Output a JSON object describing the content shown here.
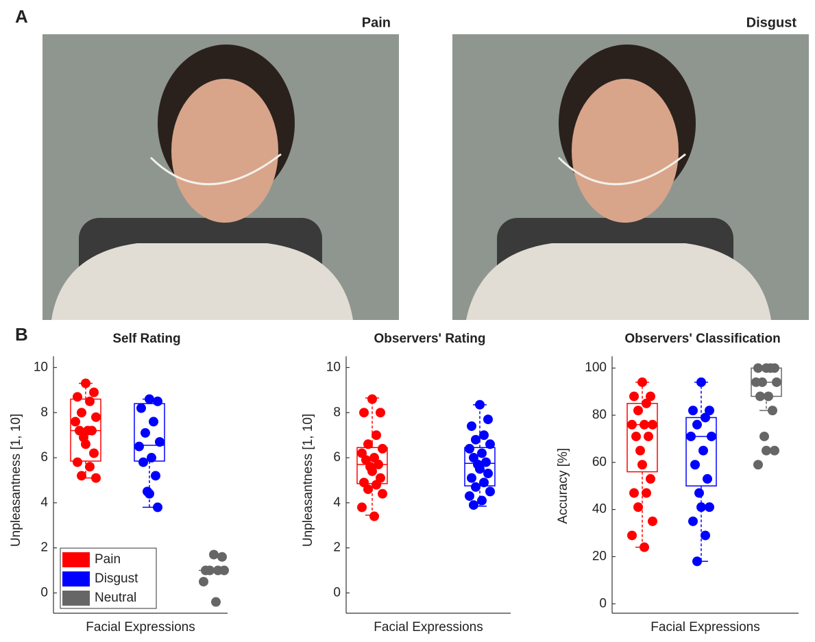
{
  "panel_labels": [
    "A",
    "B"
  ],
  "photos": [
    {
      "title": "Pain"
    },
    {
      "title": "Disgust"
    }
  ],
  "chart_data": [
    {
      "type": "box",
      "title": "Self Rating",
      "xlabel": "Facial Expressions",
      "ylabel": "Unpleasantness [1, 10]",
      "ylim": [
        -0.9,
        10.5
      ],
      "yticks": [
        0,
        2,
        4,
        6,
        8,
        10
      ],
      "legend": "lower left",
      "series": [
        {
          "name": "Pain",
          "color": "#ff0000",
          "box": {
            "min": 5.1,
            "q1": 5.85,
            "median": 7.2,
            "q3": 8.6,
            "max": 9.3
          },
          "points": [
            9.3,
            8.9,
            8.7,
            8.5,
            8.0,
            7.8,
            7.6,
            7.2,
            7.2,
            7.2,
            6.9,
            6.6,
            6.2,
            5.8,
            5.6,
            5.2,
            5.1
          ]
        },
        {
          "name": "Disgust",
          "color": "#0000ff",
          "box": {
            "min": 3.8,
            "q1": 5.85,
            "median": 6.55,
            "q3": 8.4,
            "max": 8.6
          },
          "points": [
            8.6,
            8.5,
            8.2,
            7.6,
            7.1,
            6.7,
            6.5,
            6.0,
            5.8,
            5.2,
            4.5,
            4.4,
            3.8
          ]
        },
        {
          "name": "Neutral",
          "color": "#666666",
          "box": {
            "min": 1.0,
            "q1": 1.0,
            "median": 1.0,
            "q3": 1.0,
            "max": 1.0
          },
          "points": [
            1.7,
            1.6,
            1.0,
            1.0,
            1.0,
            1.0,
            0.5,
            -0.4
          ]
        }
      ]
    },
    {
      "type": "box",
      "title": "Observers' Rating",
      "xlabel": "Facial Expressions",
      "ylabel": "Unpleasantness [1, 10]",
      "ylim": [
        -0.9,
        10.5
      ],
      "yticks": [
        0,
        2,
        4,
        6,
        8,
        10
      ],
      "series": [
        {
          "color": "#ff0000",
          "box": {
            "min": 3.45,
            "q1": 4.85,
            "median": 5.7,
            "q3": 6.45,
            "max": 8.65
          },
          "points": [
            8.6,
            8.0,
            8.0,
            7.0,
            6.6,
            6.4,
            6.2,
            6.0,
            5.9,
            5.7,
            5.6,
            5.4,
            5.1,
            4.9,
            4.8,
            4.6,
            4.4,
            3.8,
            3.4
          ]
        },
        {
          "color": "#0000ff",
          "box": {
            "min": 3.85,
            "q1": 4.75,
            "median": 5.75,
            "q3": 6.45,
            "max": 8.35
          },
          "points": [
            8.35,
            7.7,
            7.4,
            7.0,
            6.8,
            6.6,
            6.4,
            6.2,
            6.0,
            5.8,
            5.7,
            5.5,
            5.3,
            5.1,
            4.9,
            4.7,
            4.5,
            4.3,
            4.1,
            3.9
          ]
        }
      ]
    },
    {
      "type": "box",
      "title": "Observers' Classification",
      "xlabel": "Facial Expressions",
      "ylabel": "Accuracy [%]",
      "ylim": [
        -4,
        105
      ],
      "yticks": [
        0,
        20,
        40,
        60,
        80,
        100
      ],
      "series": [
        {
          "color": "#ff0000",
          "box": {
            "min": 24,
            "q1": 56,
            "median": 76,
            "q3": 85,
            "max": 94
          },
          "points": [
            94,
            88,
            88,
            85,
            82,
            76,
            76,
            76,
            71,
            71,
            65,
            59,
            53,
            47,
            47,
            41,
            35,
            29,
            24
          ]
        },
        {
          "color": "#0000ff",
          "box": {
            "min": 18,
            "q1": 50,
            "median": 71,
            "q3": 79,
            "max": 94
          },
          "points": [
            94,
            82,
            82,
            79,
            76,
            71,
            71,
            65,
            59,
            53,
            47,
            41,
            41,
            35,
            29,
            18
          ]
        },
        {
          "color": "#666666",
          "box": {
            "min": 82,
            "q1": 88,
            "median": 94,
            "q3": 100,
            "max": 100
          },
          "points": [
            100,
            100,
            100,
            100,
            94,
            94,
            94,
            88,
            88,
            82,
            71,
            65,
            65,
            59
          ]
        }
      ]
    }
  ]
}
